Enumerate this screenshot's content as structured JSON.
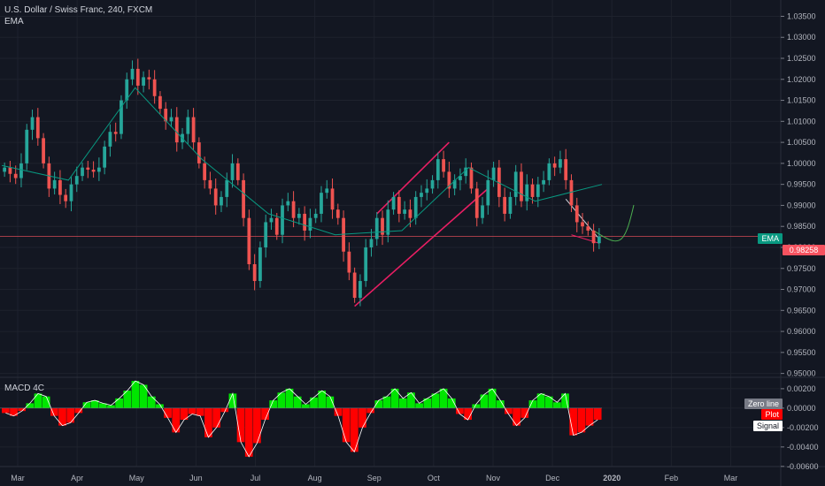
{
  "header": {
    "symbol_line": "U.S. Dollar / Swiss Franc, 240, FXCM",
    "indicator": "EMA",
    "macd_label": "MACD 4C"
  },
  "tags": {
    "ema": "EMA",
    "last_price": "0.98258",
    "zero_line": "Zero line",
    "plot": "Plot",
    "signal": "Signal"
  },
  "colors": {
    "background": "#131722",
    "up": "#26a69a",
    "down": "#ef5350",
    "ema_line": "#089981",
    "price_line": "#f7525f",
    "trendline": "#e91e63",
    "macd_pos": "#00e600",
    "macd_neg": "#ff0000"
  },
  "chart_data": [
    {
      "type": "candlestick",
      "title": "U.S. Dollar / Swiss Franc, 240, FXCM",
      "x_tick_labels": [
        "Mar",
        "Apr",
        "May",
        "Jun",
        "Jul",
        "Aug",
        "Sep",
        "Oct",
        "Nov",
        "Dec",
        "2020",
        "Feb",
        "Mar"
      ],
      "y_tick_labels": [
        "1.03500",
        "1.03000",
        "1.02500",
        "1.02000",
        "1.01500",
        "1.01000",
        "1.00500",
        "1.00000",
        "0.99500",
        "0.99000",
        "0.98500",
        "0.98000",
        "0.97500",
        "0.97000",
        "0.96500",
        "0.96000",
        "0.95500",
        "0.95000"
      ],
      "ylim": [
        0.9495,
        1.0372
      ],
      "last_price": 0.98258,
      "series": [
        {
          "name": "EMA",
          "type": "line",
          "x": [
            "Mar",
            "Apr",
            "May",
            "Jun",
            "Jul",
            "Aug",
            "Sep",
            "Oct",
            "Nov",
            "Dec"
          ],
          "values": [
            0.9995,
            0.996,
            1.018,
            1.001,
            0.988,
            0.983,
            0.984,
            0.999,
            0.991,
            0.995
          ]
        }
      ],
      "close": [
        0.999,
        0.9975,
        0.9965,
        1.0,
        1.008,
        1.011,
        1.006,
        1.0,
        0.994,
        0.996,
        0.9925,
        0.991,
        0.995,
        0.997,
        0.999,
        0.9985,
        0.998,
        0.999,
        1.004,
        1.0075,
        1.007,
        1.015,
        1.02,
        1.0225,
        1.0185,
        1.0205,
        1.02,
        1.016,
        1.013,
        1.01,
        1.011,
        1.005,
        1.007,
        1.011,
        1.005,
        1.0,
        0.996,
        0.994,
        0.99,
        0.992,
        0.996,
        1.0,
        0.996,
        0.987,
        0.976,
        0.972,
        0.98,
        0.986,
        0.987,
        0.983,
        0.99,
        0.991,
        0.987,
        0.988,
        0.984,
        0.987,
        0.988,
        0.993,
        0.994,
        0.989,
        0.987,
        0.979,
        0.974,
        0.968,
        0.972,
        0.98,
        0.982,
        0.987,
        0.983,
        0.989,
        0.992,
        0.988,
        0.989,
        0.987,
        0.992,
        0.993,
        0.994,
        0.996,
        1.001,
        0.998,
        0.994,
        0.996,
        0.997,
        0.999,
        0.994,
        0.987,
        0.99,
        0.996,
        0.999,
        0.992,
        0.988,
        0.992,
        0.998,
        0.991,
        0.995,
        0.992,
        0.995,
        0.996,
        1.0,
        0.999,
        1.001,
        0.996,
        0.99,
        0.986,
        0.985,
        0.984,
        0.981,
        0.9826
      ],
      "candle_count": 108,
      "drawings": [
        "ascending channel Aug–Oct",
        "descending trendline Dec",
        "projected path after Dec"
      ]
    },
    {
      "type": "bar",
      "title": "MACD 4C",
      "y_tick_labels": [
        "0.00200",
        "0.00000",
        "-0.00200",
        "-0.00400",
        "-0.00600"
      ],
      "ylim": [
        -0.0062,
        0.0029
      ],
      "legend": [
        "Zero line",
        "Plot",
        "Signal"
      ],
      "values": [
        -0.0005,
        -0.0008,
        -0.0003,
        0.0005,
        0.0015,
        0.0012,
        -0.0008,
        -0.0018,
        -0.0015,
        -0.0005,
        0.0006,
        0.0008,
        0.0005,
        0.0003,
        0.001,
        0.0018,
        0.0028,
        0.0024,
        0.0012,
        0.0004,
        -0.001,
        -0.0025,
        -0.0012,
        -0.0006,
        -0.0008,
        -0.003,
        -0.002,
        -0.0004,
        0.0015,
        -0.0035,
        -0.005,
        -0.0036,
        -0.0012,
        0.0008,
        0.0016,
        0.002,
        0.0012,
        0.0004,
        0.0011,
        0.0018,
        0.0012,
        -0.0008,
        -0.0035,
        -0.0045,
        -0.002,
        -0.0005,
        0.0008,
        0.0012,
        0.002,
        0.001,
        0.0016,
        0.0005,
        0.001,
        0.0015,
        0.002,
        0.001,
        -0.0006,
        -0.0012,
        0.0004,
        0.0014,
        0.002,
        0.0008,
        -0.0006,
        -0.0018,
        -0.001,
        0.0008,
        0.0015,
        0.0012,
        0.0006,
        0.0015,
        -0.0028,
        -0.0025,
        -0.0018,
        -0.0012
      ]
    }
  ]
}
